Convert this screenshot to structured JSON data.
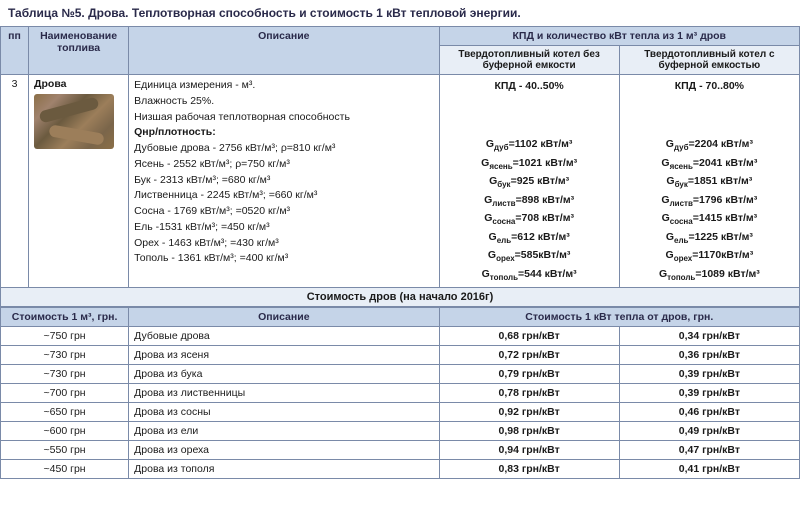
{
  "title": "Таблица №5. Дрова. Теплотворная способность и стоимость 1 кВт тепловой энергии.",
  "headers": {
    "pp": "пп",
    "name": "Наименование топлива",
    "desc": "Описание",
    "kpd_main": "КПД и количество кВт тепла из 1 м³ дров",
    "kpd_no_buf": "Твердотопливный котел без буферной емкости",
    "kpd_buf": "Твердотопливный котел с буферной емкостью"
  },
  "row": {
    "num": "3",
    "name": "Дрова",
    "desc_unit": "Единица измерения  - м³.",
    "desc_moist": "Влажность 25%.",
    "desc_heat": "Низшая рабочая теплотворная способность",
    "desc_qnr": "Qнр/плотность:",
    "wood": {
      "dub": "Дубовые дрова - 2756 кВт/м³; ρ=810 кг/м³",
      "yasen": "Ясень - 2552 кВт/м³; ρ=750 кг/м³",
      "buk": "Бук - 2313 кВт/м³; =680 кг/м³",
      "listv": "Лиственница - 2245 кВт/м³; =660 кг/м³",
      "sosna": "Сосна - 1769 кВт/м³; =0520 кг/м³",
      "el": "Ель -1531 кВт/м³; =450 кг/м³",
      "oreh": "Орех - 1463 кВт/м³; =430 кг/м³",
      "topol": "Тополь - 1361 кВт/м³; =400 кг/м³"
    },
    "kpd1_title": "КПД - 40..50%",
    "kpd2_title": "КПД - 70..80%",
    "g1": {
      "dub": "=1102 кВт/м³",
      "yasen": "=1021 кВт/м³",
      "buk": "=925 кВт/м³",
      "listv": "=898 кВт/м³",
      "sosna": "=708 кВт/м³",
      "el": "=612 кВт/м³",
      "oreh": "=585кВт/м³",
      "topol": "=544 кВт/м³"
    },
    "g2": {
      "dub": "=2204 кВт/м³",
      "yasen": "=2041 кВт/м³",
      "buk": "=1851 кВт/м³",
      "listv": "=1796 кВт/м³",
      "sosna": "=1415 кВт/м³",
      "el": "=1225 кВт/м³",
      "oreh": "=1170кВт/м³",
      "topol": "=1089 кВт/м³"
    },
    "subs": {
      "dub": "дуб",
      "yasen": "ясень",
      "buk": "бук",
      "listv": "листв",
      "sosna": "сосна",
      "el": "ель",
      "oreh": "орех",
      "topol": "тополь"
    }
  },
  "cost_header": "Стоимость дров (на начало 2016г)",
  "cost_cols": {
    "price": "Стоимость 1 м³, грн.",
    "desc": "Описание",
    "cost_kwt": "Стоимость 1 кВт тепла от дров, грн."
  },
  "cost_rows": [
    {
      "price": "~750 грн",
      "desc": "Дубовые дрова",
      "c1": "0,68 грн/кВт",
      "c2": "0,34 грн/кВт"
    },
    {
      "price": "~730 грн",
      "desc": "Дрова из ясеня",
      "c1": "0,72 грн/кВт",
      "c2": "0,36 грн/кВт"
    },
    {
      "price": "~730 грн",
      "desc": "Дрова из бука",
      "c1": "0,79 грн/кВт",
      "c2": "0,39 грн/кВт"
    },
    {
      "price": "~700 грн",
      "desc": "Дрова из лиственницы",
      "c1": "0,78 грн/кВт",
      "c2": "0,39 грн/кВт"
    },
    {
      "price": "~650 грн",
      "desc": "Дрова из сосны",
      "c1": "0,92 грн/кВт",
      "c2": "0,46 грн/кВт"
    },
    {
      "price": "~600 грн",
      "desc": "Дрова из ели",
      "c1": "0,98 грн/кВт",
      "c2": "0,49 грн/кВт"
    },
    {
      "price": "~550 грн",
      "desc": "Дрова из ореха",
      "c1": "0,94 грн/кВт",
      "c2": "0,47 грн/кВт"
    },
    {
      "price": "~450 грн",
      "desc": "Дрова из тополя",
      "c1": "0,83 грн/кВт",
      "c2": "0,41 грн/кВт"
    }
  ]
}
